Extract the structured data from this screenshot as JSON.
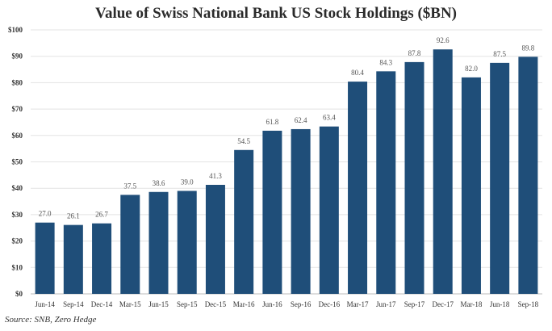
{
  "chart_data": {
    "type": "bar",
    "title": "Value of Swiss National Bank US Stock Holdings ($BN)",
    "source": "Source: SNB, Zero Hedge",
    "categories": [
      "Jun-14",
      "Sep-14",
      "Dec-14",
      "Mar-15",
      "Jun-15",
      "Sep-15",
      "Dec-15",
      "Mar-16",
      "Jun-16",
      "Sep-16",
      "Dec-16",
      "Mar-17",
      "Jun-17",
      "Sep-17",
      "Dec-17",
      "Mar-18",
      "Jun-18",
      "Sep-18"
    ],
    "values": [
      27.0,
      26.1,
      26.7,
      37.5,
      38.6,
      39.0,
      41.3,
      54.5,
      61.8,
      62.4,
      63.4,
      80.4,
      84.3,
      87.8,
      92.6,
      82.0,
      87.5,
      89.8
    ],
    "ylim": [
      0,
      100
    ],
    "yticks": [
      "$0",
      "$10",
      "$20",
      "$30",
      "$40",
      "$50",
      "$60",
      "$70",
      "$80",
      "$90",
      "$100"
    ],
    "grid": true,
    "bar_color": "#1f4e79",
    "xlabel": "",
    "ylabel": ""
  }
}
